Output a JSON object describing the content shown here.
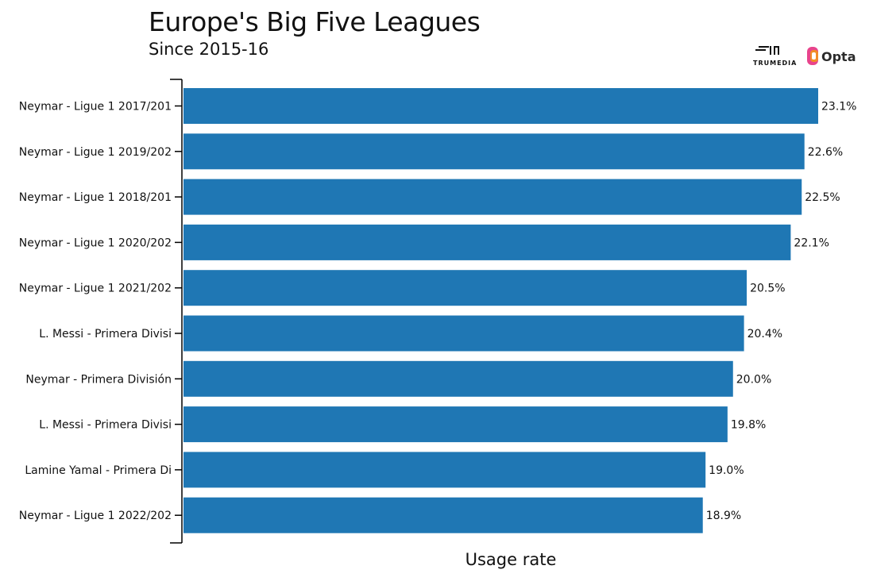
{
  "title": "Europe's Big Five Leagues",
  "subtitle": "Since 2015-16",
  "logos": {
    "trumedia": "TRUMEDIA",
    "opta": "Opta"
  },
  "colors": {
    "bar": "#1f77b4",
    "axis": "#000000",
    "text": "#111111"
  },
  "chart_data": {
    "type": "bar",
    "orientation": "horizontal",
    "title": "Europe's Big Five Leagues",
    "subtitle": "Since 2015-16",
    "xlabel": "Usage rate",
    "ylabel": "",
    "grid": false,
    "value_format": "percent",
    "categories": [
      "Neymar - Ligue 1 2017/201",
      "Neymar - Ligue 1 2019/202",
      "Neymar - Ligue 1 2018/201",
      "Neymar - Ligue 1 2020/202",
      "Neymar - Ligue 1 2021/202",
      "L. Messi - Primera Divisi",
      "Neymar - Primera División",
      "L. Messi - Primera Divisi",
      "Lamine Yamal - Primera Di",
      "Neymar - Ligue 1 2022/202"
    ],
    "values": [
      23.1,
      22.6,
      22.5,
      22.1,
      20.5,
      20.4,
      20.0,
      19.8,
      19.0,
      18.9
    ],
    "data_labels": [
      "23.1%",
      "22.6%",
      "22.5%",
      "22.1%",
      "20.5%",
      "20.4%",
      "20.0%",
      "19.8%",
      "19.0%",
      "18.9%"
    ]
  }
}
